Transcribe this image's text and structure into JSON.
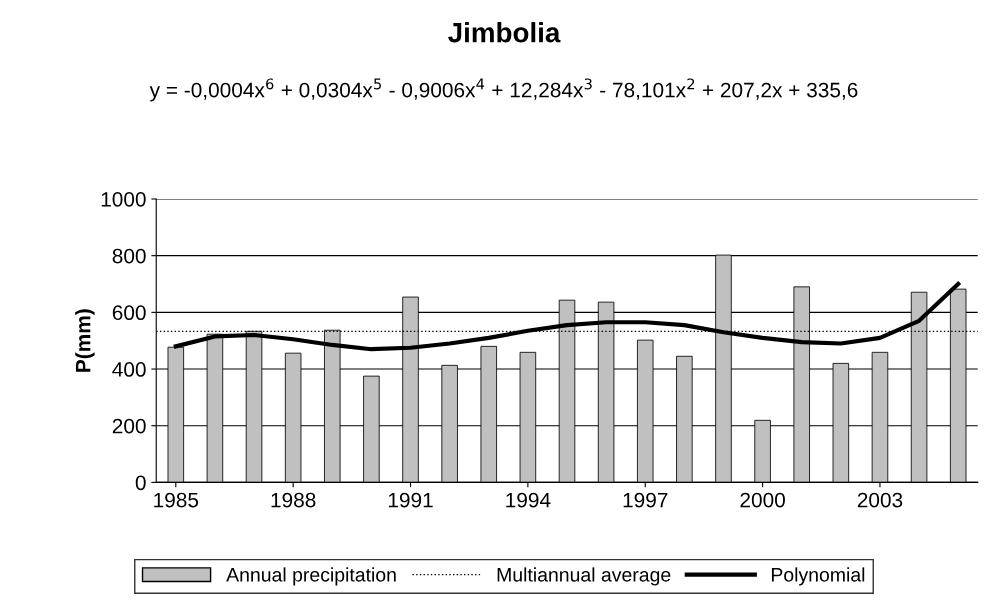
{
  "chart_data": {
    "type": "bar",
    "title": "Jimbolia",
    "ylabel": "P(mm)",
    "annotations": [
      "y = -0,0004x$^{6}$ + 0,0304x$^{5}$ - 0,9006x$^{4}$ + 12,284x$^{3}$ - 78,101x$^{2}$ + 207,2x + 335,6"
    ],
    "categories": [
      "1985",
      null,
      null,
      "1988",
      null,
      null,
      "1991",
      null,
      null,
      "1994",
      null,
      null,
      "1997",
      null,
      null,
      "2000",
      null,
      null,
      "2003",
      null,
      null
    ],
    "series": [
      {
        "name": "Annual precipitation",
        "color": "#c0c0c0",
        "values": [
          477,
          523,
          533,
          456,
          537,
          375,
          654,
          413,
          480,
          459,
          643,
          636,
          502,
          445,
          802,
          219,
          690,
          420,
          459,
          671,
          682
        ]
      },
      {
        "name": "Polynomial",
        "type": "line",
        "color": "#000000",
        "values": [
          480,
          515,
          520,
          505,
          485,
          470,
          475,
          490,
          510,
          535,
          555,
          565,
          565,
          555,
          530,
          510,
          495,
          490,
          510,
          570,
          700
        ]
      }
    ],
    "ref_lines": [
      {
        "axis": "y",
        "value": 533,
        "label": "Multiannual average",
        "color": "#000000",
        "line_style": "dotted"
      }
    ],
    "ylim": [
      0,
      1000
    ],
    "yticks": [
      0,
      200,
      400,
      600,
      800,
      1000
    ],
    "grid": "y",
    "legend": "bottom"
  }
}
